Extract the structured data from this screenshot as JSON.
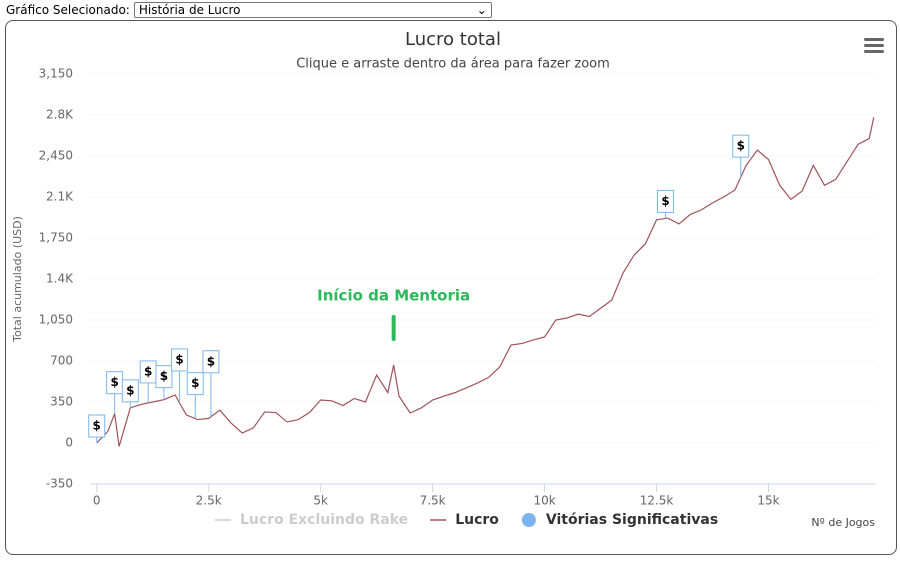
{
  "selector": {
    "label": "Gráfico Selecionado:",
    "value": "História de Lucro"
  },
  "chart_data": {
    "type": "line",
    "title": "Lucro total",
    "subtitle": "Clique e arraste dentro da área para fazer zoom",
    "y_label": "Total acumulado (USD)",
    "x_label": "Nº de Jogos",
    "xlim": [
      -150,
      17400
    ],
    "xticks": [
      0,
      {
        "value": 2500,
        "label": "2.5k"
      },
      {
        "value": 5000,
        "label": "5k"
      },
      {
        "value": 7500,
        "label": "7.5k"
      },
      {
        "value": 10000,
        "label": "10k"
      },
      {
        "value": 12500,
        "label": "12.5k"
      },
      {
        "value": 15000,
        "label": "15k"
      }
    ],
    "ylim": [
      -350,
      3150
    ],
    "yticks": [
      -350,
      0,
      350,
      700,
      {
        "value": 1050,
        "label": "1,050"
      },
      {
        "value": 1400,
        "label": "1.4K"
      },
      {
        "value": 1750,
        "label": "1,750"
      },
      {
        "value": 2100,
        "label": "2.1K"
      },
      {
        "value": 2450,
        "label": "2,450"
      },
      {
        "value": 2800,
        "label": "2.8K"
      },
      {
        "value": 3150,
        "label": "3,150"
      }
    ],
    "grid": true,
    "series": [
      {
        "name": "Lucro Excluindo Rake",
        "color": "#cccccc",
        "visible": false
      },
      {
        "name": "Lucro",
        "color": "#a0525a",
        "x": [
          0,
          250,
          400,
          500,
          750,
          1000,
          1250,
          1500,
          1750,
          2000,
          2250,
          2500,
          2750,
          3000,
          3250,
          3500,
          3750,
          4000,
          4250,
          4500,
          4750,
          5000,
          5250,
          5500,
          5750,
          6000,
          6250,
          6500,
          6630,
          6750,
          7000,
          7250,
          7500,
          7750,
          8000,
          8250,
          8500,
          8750,
          9000,
          9250,
          9500,
          9750,
          10000,
          10250,
          10500,
          10750,
          11000,
          11250,
          11500,
          11750,
          12000,
          12250,
          12500,
          12750,
          13000,
          13250,
          13500,
          13750,
          14000,
          14250,
          14500,
          14750,
          15000,
          15250,
          15500,
          15750,
          16000,
          16250,
          16500,
          16750,
          17000,
          17250,
          17350
        ],
        "values": [
          0,
          100,
          250,
          -30,
          300,
          330,
          350,
          370,
          410,
          240,
          200,
          210,
          280,
          170,
          85,
          130,
          265,
          260,
          180,
          200,
          260,
          367,
          360,
          320,
          380,
          350,
          580,
          430,
          666,
          400,
          256,
          300,
          367,
          400,
          430,
          470,
          512,
          560,
          650,
          836,
          850,
          880,
          905,
          1050,
          1067,
          1100,
          1080,
          1150,
          1220,
          1450,
          1605,
          1700,
          1905,
          1920,
          1870,
          1950,
          1990,
          2050,
          2100,
          2160,
          2370,
          2500,
          2420,
          2200,
          2080,
          2150,
          2370,
          2200,
          2250,
          2400,
          2550,
          2600,
          2780
        ]
      },
      {
        "name": "Vitórias Significativas",
        "color": "#7cb5ec",
        "type": "flags",
        "flag": "$",
        "x": [
          0,
          400,
          750,
          1150,
          1500,
          1850,
          2200,
          2550,
          12700,
          14380
        ]
      }
    ],
    "annotation": {
      "text": "Início da Mentoria",
      "x": 6630,
      "color": "#2eb85c"
    }
  }
}
